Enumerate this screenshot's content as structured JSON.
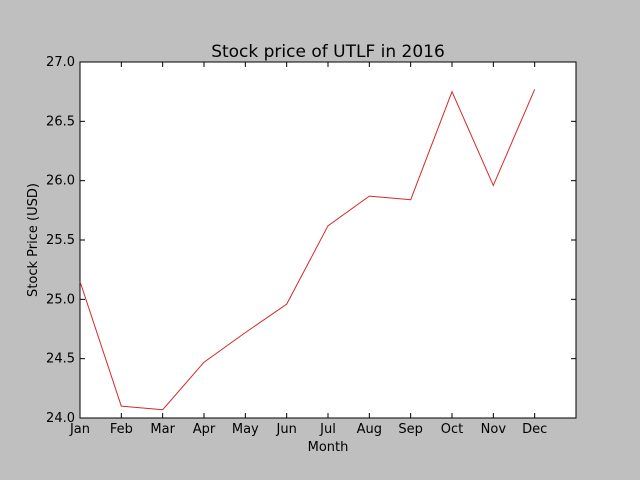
{
  "chart_data": {
    "type": "line",
    "title": "Stock price of UTLF in 2016",
    "xlabel": "Month",
    "ylabel": "Stock Price (USD)",
    "categories": [
      "Jan",
      "Feb",
      "Mar",
      "Apr",
      "May",
      "Jun",
      "Jul",
      "Aug",
      "Sep",
      "Oct",
      "Nov",
      "Dec"
    ],
    "series": [
      {
        "color": "#d62728",
        "values": [
          25.15,
          24.1,
          24.07,
          24.47,
          24.72,
          24.96,
          25.62,
          25.87,
          25.84,
          26.75,
          25.96,
          26.77
        ]
      }
    ],
    "xlim": [
      0,
      12
    ],
    "ylim": [
      24.0,
      27.0
    ],
    "yticks": [
      "24.0",
      "24.5",
      "25.0",
      "25.5",
      "26.0",
      "26.5",
      "27.0"
    ],
    "grid": false,
    "legend": "none",
    "colors": {
      "background": "#bfbfbf",
      "plot_area": "#ffffff",
      "line": "#d62728"
    }
  }
}
